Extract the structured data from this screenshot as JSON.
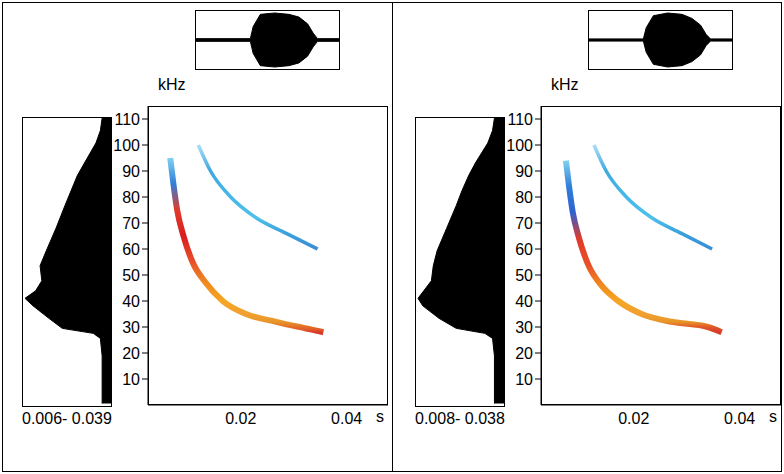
{
  "chart_data": [
    {
      "type": "spectrogram",
      "y_label": "kHz",
      "x_label": "s",
      "range_label": "0.006- 0.039",
      "xlim": [
        0.0025,
        0.0478
      ],
      "xticks": [
        0.02,
        0.04
      ],
      "ylim": [
        0,
        115
      ],
      "yticks": [
        10,
        20,
        30,
        40,
        50,
        60,
        70,
        80,
        90,
        100,
        110
      ],
      "harmonics": [
        {
          "time": [
            0.0067,
            0.0073,
            0.008,
            0.0092,
            0.0109,
            0.0134,
            0.0166,
            0.021,
            0.0267,
            0.0334,
            0.0356
          ],
          "frequency": [
            95,
            85,
            75,
            65,
            55,
            47,
            40,
            35,
            32,
            29,
            28
          ],
          "colors": [
            "#7fd0f0",
            "#2f7fd8",
            "#e03a2a",
            "#d81e1e",
            "#e8502a",
            "#f08a20",
            "#f5a623",
            "#f0a030",
            "#e8962a",
            "#e05a28",
            "#d83a2a"
          ]
        },
        {
          "time": [
            0.012,
            0.0143,
            0.0181,
            0.0229,
            0.0286,
            0.0345
          ],
          "frequency": [
            100,
            90,
            80,
            72,
            66,
            60
          ],
          "colors": [
            "#a8def5",
            "#3fa9e0",
            "#45b8e8",
            "#4fc0e8",
            "#3aa0dc",
            "#3a8ed6"
          ]
        }
      ],
      "spectrum": {
        "frequency": [
          1,
          10,
          20,
          27,
          29,
          31,
          35,
          40,
          43,
          46,
          50,
          56,
          62,
          71,
          80,
          86,
          92,
          97,
          105,
          110,
          115
        ],
        "amplitude": [
          0.1,
          0.1,
          0.1,
          0.12,
          0.2,
          0.55,
          0.7,
          0.88,
          0.97,
          0.85,
          0.78,
          0.8,
          0.73,
          0.62,
          0.52,
          0.45,
          0.38,
          0.3,
          0.17,
          0.12,
          0.1
        ]
      },
      "waveform": {
        "x": [
          0,
          0.38,
          0.4,
          0.45,
          0.55,
          0.65,
          0.72,
          0.78,
          0.82,
          0.85,
          1
        ],
        "amplitude": [
          0.05,
          0.05,
          0.5,
          0.95,
          1,
          0.95,
          0.85,
          0.6,
          0.25,
          0.05,
          0.05
        ]
      }
    },
    {
      "type": "spectrogram",
      "y_label": "kHz",
      "x_label": "s",
      "range_label": "0.008- 0.038",
      "xlim": [
        0.0025,
        0.0478
      ],
      "xticks": [
        0.02,
        0.04
      ],
      "ylim": [
        0,
        115
      ],
      "yticks": [
        10,
        20,
        30,
        40,
        50,
        60,
        70,
        80,
        90,
        100,
        110
      ],
      "harmonics": [
        {
          "time": [
            0.0072,
            0.0078,
            0.0085,
            0.0097,
            0.0114,
            0.0139,
            0.0171,
            0.0215,
            0.0272,
            0.034,
            0.0366
          ],
          "frequency": [
            94,
            84,
            74,
            64,
            54,
            46,
            40,
            35,
            32,
            30,
            28
          ],
          "colors": [
            "#7fd0f0",
            "#2f7fd8",
            "#3060d0",
            "#e03a2a",
            "#e8502a",
            "#f08a20",
            "#f5a623",
            "#f0a030",
            "#e8962a",
            "#e05a28",
            "#d83a2a"
          ]
        },
        {
          "time": [
            0.0125,
            0.0148,
            0.0186,
            0.0234,
            0.029,
            0.0348
          ],
          "frequency": [
            100,
            90,
            80,
            72,
            66,
            60
          ],
          "colors": [
            "#a8def5",
            "#3fa9e0",
            "#45b8e8",
            "#4fc0e8",
            "#3aa0dc",
            "#3a8ed6"
          ]
        }
      ],
      "spectrum": {
        "frequency": [
          1,
          10,
          20,
          27,
          29,
          31,
          35,
          40,
          43,
          46,
          50,
          56,
          62,
          71,
          80,
          86,
          92,
          97,
          105,
          110,
          115
        ],
        "amplitude": [
          0.1,
          0.1,
          0.1,
          0.12,
          0.2,
          0.5,
          0.68,
          0.85,
          0.9,
          0.84,
          0.76,
          0.74,
          0.7,
          0.6,
          0.5,
          0.44,
          0.37,
          0.3,
          0.17,
          0.12,
          0.1
        ]
      },
      "waveform": {
        "x": [
          0,
          0.38,
          0.4,
          0.45,
          0.55,
          0.65,
          0.72,
          0.78,
          0.82,
          0.85,
          1
        ],
        "amplitude": [
          0.04,
          0.04,
          0.45,
          0.9,
          1,
          0.95,
          0.8,
          0.55,
          0.2,
          0.04,
          0.04
        ]
      }
    }
  ]
}
